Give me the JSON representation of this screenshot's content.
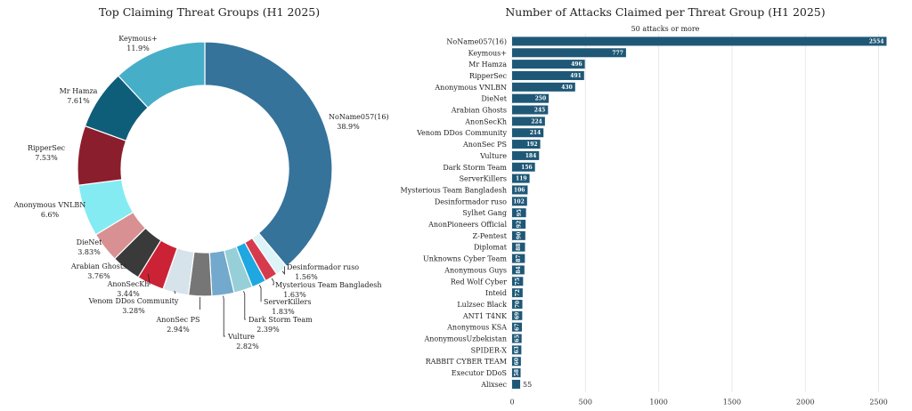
{
  "chart_data": [
    {
      "type": "pie",
      "title": "Top Claiming Threat Groups (H1 2025)",
      "labels": [
        "NoName057(16)",
        "Desinformador ruso",
        "Mysterious Team Bangladesh",
        "ServerKillers",
        "Dark Storm Team",
        "Vulture",
        "AnonSec PS",
        "Venom DDos Community",
        "AnonSecKh",
        "Arabian Ghosts",
        "DieNet",
        "Anonymous VNLBN",
        "RipperSec",
        "Mr Hamza",
        "Keymous+"
      ],
      "percent_labels": [
        "38.9%",
        "1.56%",
        "1.63%",
        "1.83%",
        "2.39%",
        "2.82%",
        "2.94%",
        "3.28%",
        "3.44%",
        "3.76%",
        "3.83%",
        "6.6%",
        "7.53%",
        "7.61%",
        "11.9%"
      ],
      "values": [
        38.9,
        1.56,
        1.63,
        1.83,
        2.39,
        2.82,
        2.94,
        3.28,
        3.44,
        3.76,
        3.83,
        6.6,
        7.53,
        7.61,
        11.9
      ],
      "colors": [
        "#35739b",
        "#dcf3f8",
        "#d63b4d",
        "#1ea7e1",
        "#97cfd8",
        "#72a9cd",
        "#767676",
        "#d7e3ea",
        "#cc2236",
        "#3a3a3a",
        "#d89092",
        "#84ebf3",
        "#8b1e2c",
        "#0f5e79",
        "#47aec8"
      ],
      "hole": "donut"
    },
    {
      "type": "bar",
      "orientation": "horizontal",
      "title": "Number of Attacks Claimed per Threat Group (H1 2025)",
      "subtitle": "50 attacks or more",
      "categories": [
        "NoName057(16)",
        "Keymous+",
        "Mr Hamza",
        "RipperSec",
        "Anonymous VNLBN",
        "DieNet",
        "Arabian Ghosts",
        "AnonSecKh",
        "Venom DDos Community",
        "AnonSec PS",
        "Vulture",
        "Dark Storm Team",
        "ServerKillers",
        "Mysterious Team Bangladesh",
        "Desinformador ruso",
        "Sylhet Gang",
        "AnonPioneers Official",
        "Z-Pentest",
        "Diplomat",
        "Unknowns Cyber Team",
        "Anonymous Guys",
        "Red Wolf Cyber",
        "Inteid",
        "Lulzsec Black",
        "ANT1 T4NK",
        "Anonymous KSA",
        "AnonymousUzbekistan",
        "SPIDER-X",
        "RABBIT CYBER TEAM",
        "Executor DDoS",
        "Alixsec"
      ],
      "values": [
        2554,
        777,
        496,
        491,
        430,
        250,
        245,
        224,
        214,
        192,
        184,
        156,
        119,
        106,
        102,
        95,
        92,
        90,
        88,
        87,
        84,
        75,
        72,
        70,
        69,
        67,
        65,
        63,
        60,
        58,
        55
      ],
      "value_labels": [
        "2554",
        "777",
        "496",
        "491",
        "430",
        "250",
        "245",
        "224",
        "214",
        "192",
        "184",
        "156",
        "119",
        "106",
        "102",
        "95",
        "92",
        "90",
        "88",
        "87",
        "84",
        "75",
        "72",
        "70",
        "69",
        "67",
        "65",
        "63",
        "60",
        "58",
        "55"
      ],
      "xticks": [
        "0",
        "500",
        "1000",
        "1500",
        "2000",
        "2500"
      ],
      "xlim": [
        0,
        2600
      ],
      "bar_color": "#1f5877",
      "grid": true
    }
  ]
}
